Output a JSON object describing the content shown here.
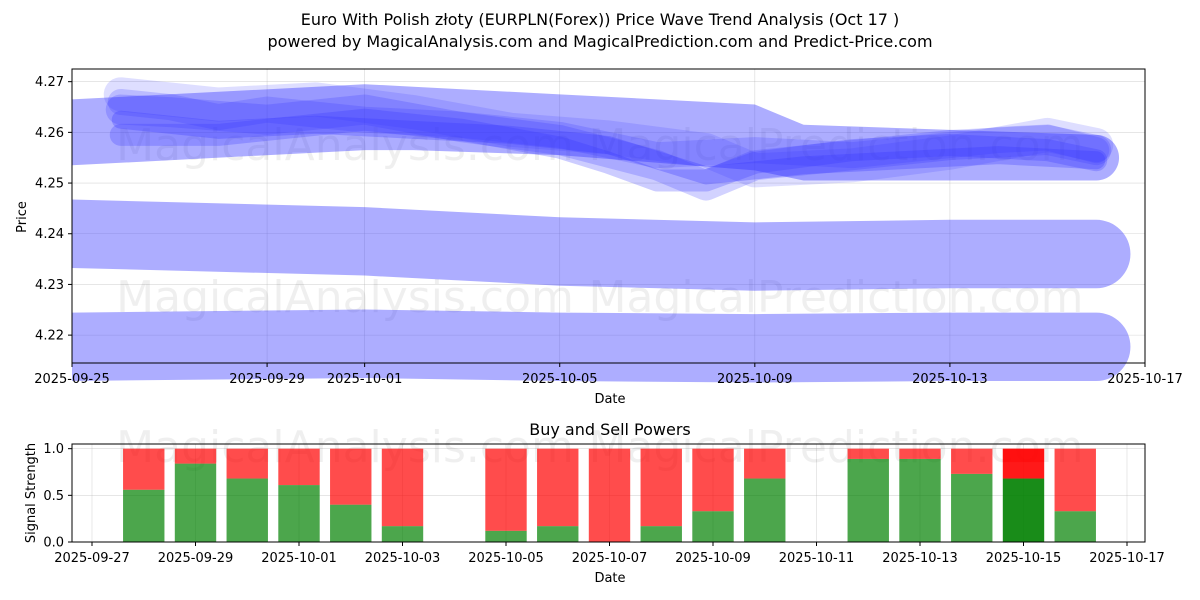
{
  "title": "Euro With Polish złoty (EURPLN(Forex)) Price Wave Trend Analysis (Oct 17 )",
  "subtitle": "powered by MagicalAnalysis.com and MagicalPrediction.com and Predict-Price.com",
  "watermarks": [
    "MagicalAnalysis.com",
    "MagicalPrediction.com"
  ],
  "colors": {
    "wave": "#3333ff",
    "buy": "#008000",
    "sell": "#ff0000",
    "grid": "#b0b0b0"
  },
  "chart_data": [
    {
      "type": "area",
      "title": "",
      "xlabel": "Date",
      "ylabel": "Price",
      "xlim": [
        "2025-09-25",
        "2025-10-17"
      ],
      "ylim": [
        4.2145,
        4.2725
      ],
      "grid": true,
      "x_ticks": [
        "2025-09-25",
        "2025-09-29",
        "2025-10-01",
        "2025-10-05",
        "2025-10-09",
        "2025-10-13",
        "2025-10-17"
      ],
      "y_ticks": [
        "4.22",
        "4.23",
        "4.24",
        "4.25",
        "4.26",
        "4.27"
      ],
      "bands": [
        {
          "name": "band-upper",
          "x": [
            "2025-09-25",
            "2025-10-01",
            "2025-10-02",
            "2025-10-05",
            "2025-10-09",
            "2025-10-10",
            "2025-10-13",
            "2025-10-16"
          ],
          "upper": [
            4.2665,
            4.2695,
            4.269,
            4.2675,
            4.2655,
            4.2615,
            4.2605,
            4.2595
          ],
          "lower": [
            4.2535,
            4.2565,
            4.2565,
            4.2555,
            4.2525,
            4.2505,
            4.2505,
            4.2505
          ]
        },
        {
          "name": "band-middle",
          "x": [
            "2025-09-25",
            "2025-10-01",
            "2025-10-05",
            "2025-10-09",
            "2025-10-13",
            "2025-10-16"
          ],
          "center": [
            4.24,
            4.2385,
            4.2365,
            4.2355,
            4.236,
            4.236
          ],
          "width": 0.0135
        },
        {
          "name": "band-lower",
          "x": [
            "2025-09-25",
            "2025-10-01",
            "2025-10-05",
            "2025-10-09",
            "2025-10-13",
            "2025-10-16"
          ],
          "center": [
            4.2177,
            4.2183,
            4.2177,
            4.2174,
            4.2177,
            4.2177
          ],
          "width": 0.0135
        }
      ],
      "waves": [
        {
          "name": "wave-1",
          "x": [
            "2025-09-26",
            "2025-09-27",
            "2025-09-29",
            "2025-10-01",
            "2025-10-03",
            "2025-10-05",
            "2025-10-07",
            "2025-10-08",
            "2025-10-09",
            "2025-10-11",
            "2025-10-13",
            "2025-10-15",
            "2025-10-16"
          ],
          "y": [
            4.2645,
            4.264,
            4.2625,
            4.2645,
            4.261,
            4.2585,
            4.2535,
            4.2495,
            4.2535,
            4.2555,
            4.2575,
            4.2585,
            4.2565
          ]
        },
        {
          "name": "wave-2",
          "x": [
            "2025-09-26",
            "2025-09-28",
            "2025-09-29",
            "2025-10-01",
            "2025-10-03",
            "2025-10-05",
            "2025-10-06",
            "2025-10-07",
            "2025-10-08",
            "2025-10-09",
            "2025-10-11",
            "2025-10-13",
            "2025-10-15",
            "2025-10-16"
          ],
          "y": [
            4.2595,
            4.2595,
            4.2605,
            4.2625,
            4.2605,
            4.257,
            4.254,
            4.2505,
            4.2505,
            4.254,
            4.2565,
            4.2575,
            4.2565,
            4.2545
          ]
        },
        {
          "name": "wave-3",
          "x": [
            "2025-09-26",
            "2025-09-27",
            "2025-09-28",
            "2025-09-29",
            "2025-10-01",
            "2025-10-03",
            "2025-10-05",
            "2025-10-07",
            "2025-10-09",
            "2025-10-11",
            "2025-10-13",
            "2025-10-14",
            "2025-10-15",
            "2025-10-16"
          ],
          "y": [
            4.266,
            4.265,
            4.263,
            4.2645,
            4.2625,
            4.2615,
            4.2595,
            4.2555,
            4.2565,
            4.2555,
            4.2575,
            4.2585,
            4.259,
            4.2565
          ]
        },
        {
          "name": "wave-4",
          "x": [
            "2025-09-26",
            "2025-09-28",
            "2025-09-30",
            "2025-10-02",
            "2025-10-04",
            "2025-10-06",
            "2025-10-07",
            "2025-10-08",
            "2025-10-10",
            "2025-10-12",
            "2025-10-14",
            "2025-10-16"
          ],
          "y": [
            4.2625,
            4.2605,
            4.2615,
            4.2605,
            4.2595,
            4.2575,
            4.2545,
            4.2515,
            4.2535,
            4.2545,
            4.2555,
            4.2545
          ]
        },
        {
          "name": "wave-5",
          "x": [
            "2025-09-26",
            "2025-09-28",
            "2025-09-30",
            "2025-10-02",
            "2025-10-04",
            "2025-10-06",
            "2025-10-08",
            "2025-10-09",
            "2025-10-11",
            "2025-10-13",
            "2025-10-15",
            "2025-10-16"
          ],
          "y": [
            4.2675,
            4.2655,
            4.2665,
            4.264,
            4.2605,
            4.259,
            4.2565,
            4.2525,
            4.2535,
            4.256,
            4.2595,
            4.2575
          ]
        }
      ]
    },
    {
      "type": "bar",
      "title": "Buy and Sell Powers",
      "xlabel": "Date",
      "ylabel": "Signal Strength",
      "xlim": [
        "2025-09-27",
        "2025-10-17"
      ],
      "ylim": [
        0,
        1.05
      ],
      "y_ticks": [
        "0.0",
        "0.5",
        "1.0"
      ],
      "x_ticks": [
        "2025-09-27",
        "2025-09-29",
        "2025-10-01",
        "2025-10-03",
        "2025-10-05",
        "2025-10-07",
        "2025-10-09",
        "2025-10-11",
        "2025-10-13",
        "2025-10-15",
        "2025-10-17"
      ],
      "grid": true,
      "categories": [
        "2025-09-28",
        "2025-09-29",
        "2025-09-30",
        "2025-10-01",
        "2025-10-02",
        "2025-10-03",
        "2025-10-05",
        "2025-10-06",
        "2025-10-07",
        "2025-10-08",
        "2025-10-09",
        "2025-10-10",
        "2025-10-12",
        "2025-10-13",
        "2025-10-14",
        "2025-10-15",
        "2025-10-16"
      ],
      "series": [
        {
          "name": "Buy",
          "values": [
            0.56,
            0.84,
            0.68,
            0.61,
            0.4,
            0.17,
            0.12,
            0.17,
            0.0,
            0.17,
            0.33,
            0.68,
            0.89,
            0.89,
            0.73,
            0.68,
            0.33
          ]
        },
        {
          "name": "Sell",
          "values": [
            0.44,
            0.16,
            0.32,
            0.39,
            0.6,
            0.83,
            0.88,
            0.83,
            1.0,
            0.83,
            0.67,
            0.32,
            0.11,
            0.11,
            0.27,
            0.32,
            0.67
          ]
        }
      ],
      "highlight": "2025-10-15"
    }
  ]
}
